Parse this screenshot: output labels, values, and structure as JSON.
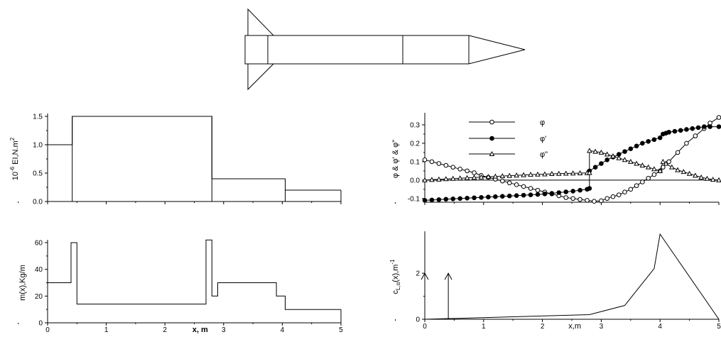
{
  "rocket": {
    "icon": "rocket-outline-icon"
  },
  "chart_data": [
    {
      "id": "stiffness",
      "type": "line",
      "step": true,
      "ylabel_sup": "-6",
      "ylabel_pre": "10",
      "ylabel_main": " EI,N.m",
      "ylabel_unit_sup": "2",
      "xlim": [
        0,
        5
      ],
      "ylim": [
        0,
        1.5
      ],
      "yticks": [
        "0.0",
        "0.5",
        "1.0",
        "1.5"
      ],
      "series": [
        {
          "x": [
            0,
            0.42,
            0.42,
            2.8,
            2.8,
            4.05,
            4.05,
            5
          ],
          "y": [
            1.0,
            1.0,
            1.5,
            1.5,
            0.4,
            0.4,
            0.2,
            0.2
          ]
        }
      ]
    },
    {
      "id": "mass",
      "type": "line",
      "ylabel": "m(x),Kg/m",
      "xlabel": "x, m",
      "xlim": [
        0,
        5
      ],
      "ylim": [
        0,
        60
      ],
      "xticks": [
        "0",
        "1",
        "2",
        "3",
        "4",
        "5"
      ],
      "yticks": [
        "0",
        "20",
        "40",
        "60"
      ],
      "series": [
        {
          "x": [
            0,
            0.4,
            0.4,
            0.5,
            0.5,
            2.7,
            2.7,
            2.8,
            2.8,
            2.9,
            2.9,
            3.9,
            3.9,
            4.05,
            4.05,
            5
          ],
          "y": [
            30,
            30,
            60,
            60,
            14,
            14,
            62,
            62,
            20,
            20,
            30,
            30,
            20,
            20,
            10,
            10
          ]
        }
      ]
    },
    {
      "id": "mode-shapes",
      "type": "line",
      "ylabel": "φ & φ' & φ\"",
      "xlim": [
        0,
        5
      ],
      "ylim": [
        -0.12,
        0.35
      ],
      "yticks": [
        "-0.1",
        "0.0",
        "0.1",
        "0.2",
        "0.3"
      ],
      "series": [
        {
          "name": "φ",
          "marker": "open-circle",
          "x": [
            0,
            0.12,
            0.24,
            0.36,
            0.48,
            0.6,
            0.72,
            0.84,
            0.96,
            1.08,
            1.2,
            1.32,
            1.44,
            1.56,
            1.68,
            1.8,
            1.92,
            2.04,
            2.16,
            2.28,
            2.4,
            2.52,
            2.64,
            2.76,
            2.88,
            3.0,
            3.1,
            3.2,
            3.3,
            3.4,
            3.5,
            3.6,
            3.7,
            3.8,
            3.9,
            4.0,
            4.05,
            4.15,
            4.3,
            4.45,
            4.6,
            4.75,
            4.85,
            5.0
          ],
          "y": [
            0.11,
            0.1,
            0.09,
            0.08,
            0.07,
            0.06,
            0.05,
            0.04,
            0.025,
            0.015,
            0.005,
            -0.005,
            -0.015,
            -0.025,
            -0.035,
            -0.045,
            -0.055,
            -0.065,
            -0.075,
            -0.085,
            -0.095,
            -0.1,
            -0.105,
            -0.11,
            -0.115,
            -0.112,
            -0.1,
            -0.09,
            -0.08,
            -0.065,
            -0.05,
            -0.03,
            -0.01,
            0.01,
            0.03,
            0.05,
            0.07,
            0.1,
            0.15,
            0.2,
            0.24,
            0.28,
            0.31,
            0.34
          ]
        },
        {
          "name": "φ'",
          "marker": "filled-circle",
          "x": [
            0,
            0.12,
            0.24,
            0.36,
            0.48,
            0.6,
            0.72,
            0.84,
            0.96,
            1.08,
            1.2,
            1.32,
            1.44,
            1.56,
            1.68,
            1.8,
            1.92,
            2.04,
            2.16,
            2.28,
            2.4,
            2.52,
            2.64,
            2.76,
            2.8,
            2.8,
            2.9,
            3.0,
            3.1,
            3.2,
            3.3,
            3.4,
            3.5,
            3.6,
            3.7,
            3.8,
            3.9,
            4.0,
            4.05,
            4.1,
            4.15,
            4.25,
            4.35,
            4.45,
            4.55,
            4.65,
            4.75,
            4.85,
            5.0
          ],
          "y": [
            -0.11,
            -0.108,
            -0.106,
            -0.104,
            -0.102,
            -0.1,
            -0.098,
            -0.096,
            -0.094,
            -0.092,
            -0.09,
            -0.088,
            -0.086,
            -0.084,
            -0.082,
            -0.08,
            -0.078,
            -0.075,
            -0.072,
            -0.068,
            -0.064,
            -0.06,
            -0.055,
            -0.05,
            -0.045,
            0.05,
            0.07,
            0.09,
            0.11,
            0.125,
            0.14,
            0.155,
            0.17,
            0.185,
            0.2,
            0.21,
            0.22,
            0.23,
            0.25,
            0.255,
            0.26,
            0.265,
            0.27,
            0.275,
            0.28,
            0.285,
            0.29,
            0.29,
            0.29
          ]
        },
        {
          "name": "φ\"",
          "marker": "open-triangle",
          "x": [
            0,
            0.12,
            0.24,
            0.36,
            0.48,
            0.6,
            0.72,
            0.84,
            0.96,
            1.08,
            1.2,
            1.32,
            1.44,
            1.56,
            1.68,
            1.8,
            1.92,
            2.04,
            2.16,
            2.28,
            2.4,
            2.52,
            2.64,
            2.76,
            2.8,
            2.8,
            2.9,
            3.0,
            3.1,
            3.2,
            3.3,
            3.4,
            3.5,
            3.6,
            3.7,
            3.8,
            3.9,
            4.0,
            4.05,
            4.1,
            4.2,
            4.3,
            4.4,
            4.5,
            4.6,
            4.7,
            4.8,
            4.9,
            5.0
          ],
          "y": [
            0.0,
            0.002,
            0.004,
            0.006,
            0.008,
            0.01,
            0.012,
            0.014,
            0.016,
            0.018,
            0.02,
            0.022,
            0.024,
            0.026,
            0.028,
            0.03,
            0.031,
            0.032,
            0.034,
            0.035,
            0.036,
            0.037,
            0.038,
            0.039,
            0.04,
            0.16,
            0.155,
            0.15,
            0.14,
            0.13,
            0.12,
            0.11,
            0.1,
            0.09,
            0.08,
            0.07,
            0.06,
            0.05,
            0.1,
            0.09,
            0.07,
            0.055,
            0.045,
            0.035,
            0.025,
            0.015,
            0.008,
            0.003,
            0.0
          ]
        }
      ],
      "legend_position": "top-center"
    },
    {
      "id": "lift-distribution",
      "type": "line",
      "ylabel_pre": "c",
      "ylabel_sub": "L,α",
      "ylabel_main": "(x),m",
      "ylabel_sup": "-1",
      "xlabel": "x,m",
      "xlim": [
        0,
        5
      ],
      "ylim": [
        0,
        3.7
      ],
      "xticks": [
        "0",
        "1",
        "2",
        "3",
        "4",
        "5"
      ],
      "yticks": [
        "0",
        "2"
      ],
      "series": [
        {
          "x": [
            0,
            2.8,
            3.4,
            3.9,
            4.0,
            5.0
          ],
          "y": [
            0,
            0.2,
            0.6,
            2.2,
            3.7,
            0.0
          ]
        }
      ],
      "arrows_x": [
        0,
        0.4
      ],
      "arrow_top_y": 2
    }
  ]
}
